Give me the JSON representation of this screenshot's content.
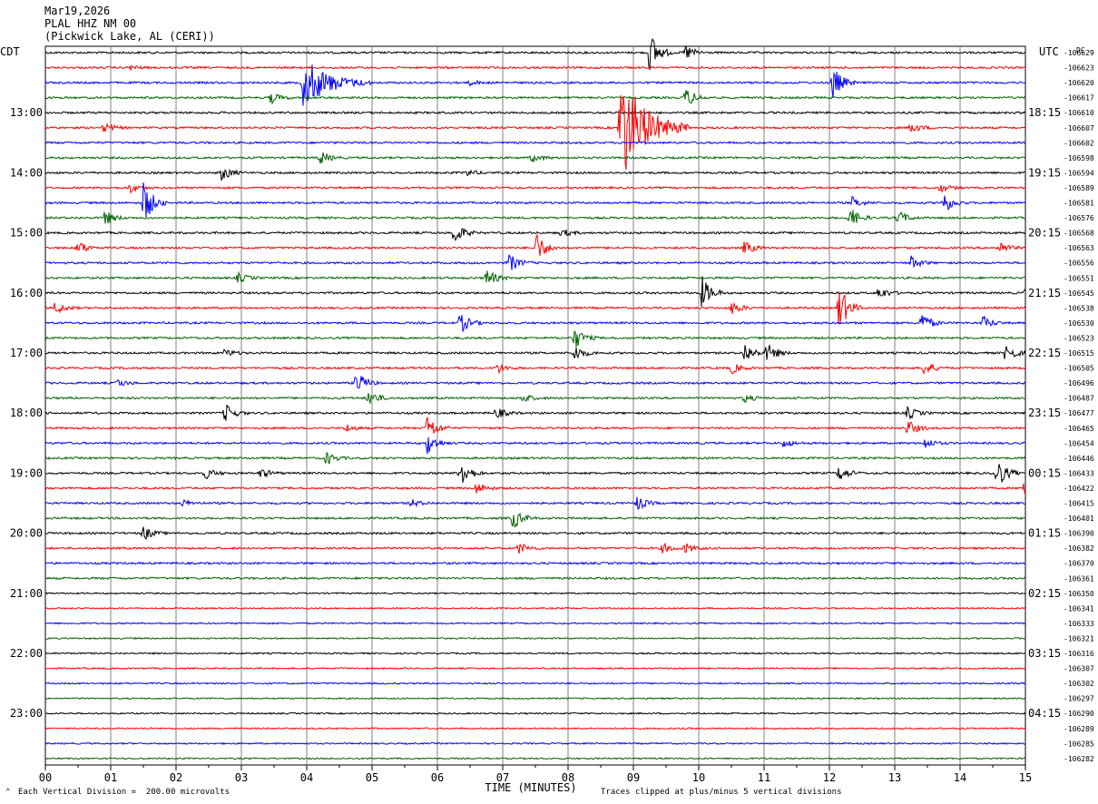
{
  "header": {
    "date": "Mar19,2026",
    "station": "PLAL HHZ NM 00",
    "location": "(Pickwick Lake, AL (CERI))"
  },
  "chart_data": {
    "type": "line",
    "title": "PLAL HHZ NM 00",
    "xlabel": "TIME (MINUTES)",
    "x_ticks": [
      "00",
      "01",
      "02",
      "03",
      "04",
      "05",
      "06",
      "07",
      "08",
      "09",
      "10",
      "11",
      "12",
      "13",
      "14",
      "15"
    ],
    "xlim": [
      0,
      15
    ],
    "left_axis_label": "CDT",
    "right_axis_label": "UTC",
    "dc_label": "DC",
    "left_times": [
      "13:00",
      "14:00",
      "15:00",
      "16:00",
      "17:00",
      "18:00",
      "19:00",
      "20:00",
      "21:00",
      "22:00",
      "23:00"
    ],
    "right_times": [
      "18:15",
      "19:15",
      "20:15",
      "21:15",
      "22:15",
      "23:15",
      "00:15",
      "01:15",
      "02:15",
      "03:15",
      "04:15"
    ],
    "trace_colors": [
      "#000000",
      "#ff0000",
      "#0000ff",
      "#006400"
    ],
    "dc_offsets": [
      "-106629",
      "-106623",
      "-106620",
      "-106617",
      "-106610",
      "-106607",
      "-106602",
      "-106598",
      "-106594",
      "-106589",
      "-106581",
      "-106576",
      "-106568",
      "-106563",
      "-106556",
      "-106551",
      "-106545",
      "-106538",
      "-106530",
      "-106523",
      "-106515",
      "-106505",
      "-106496",
      "-106487",
      "-106477",
      "-106465",
      "-106454",
      "-106446",
      "-106433",
      "-106422",
      "-106415",
      "-106401",
      "-106390",
      "-106382",
      "-106370",
      "-106361",
      "-106350",
      "-106341",
      "-106333",
      "-106321",
      "-106316",
      "-106307",
      "-106302",
      "-106297",
      "-106290",
      "-106289",
      "-106285",
      "-106282"
    ],
    "events": [
      {
        "trace": 0,
        "minute": 9.25,
        "amp": 2.6
      },
      {
        "trace": 0,
        "minute": 9.8,
        "amp": 1.0
      },
      {
        "trace": 1,
        "minute": 1.3,
        "amp": 0.3
      },
      {
        "trace": 2,
        "minute": 3.95,
        "amp": 3.2
      },
      {
        "trace": 2,
        "minute": 12.05,
        "amp": 2.2
      },
      {
        "trace": 2,
        "minute": 6.5,
        "amp": 0.3
      },
      {
        "trace": 3,
        "minute": 9.8,
        "amp": 1.3
      },
      {
        "trace": 3,
        "minute": 3.45,
        "amp": 0.7
      },
      {
        "trace": 5,
        "minute": 8.8,
        "amp": 7.0
      },
      {
        "trace": 5,
        "minute": 0.9,
        "amp": 0.6
      },
      {
        "trace": 5,
        "minute": 13.25,
        "amp": 0.7
      },
      {
        "trace": 7,
        "minute": 4.2,
        "amp": 0.9
      },
      {
        "trace": 7,
        "minute": 7.45,
        "amp": 0.5
      },
      {
        "trace": 8,
        "minute": 2.7,
        "amp": 1.0
      },
      {
        "trace": 8,
        "minute": 6.45,
        "amp": 0.4
      },
      {
        "trace": 9,
        "minute": 1.3,
        "amp": 0.6
      },
      {
        "trace": 9,
        "minute": 13.7,
        "amp": 0.5
      },
      {
        "trace": 10,
        "minute": 1.5,
        "amp": 3.0
      },
      {
        "trace": 10,
        "minute": 12.35,
        "amp": 0.7
      },
      {
        "trace": 10,
        "minute": 13.75,
        "amp": 1.3
      },
      {
        "trace": 11,
        "minute": 0.9,
        "amp": 1.0
      },
      {
        "trace": 11,
        "minute": 12.3,
        "amp": 1.4
      },
      {
        "trace": 11,
        "minute": 13.05,
        "amp": 0.9
      },
      {
        "trace": 12,
        "minute": 6.25,
        "amp": 1.5
      },
      {
        "trace": 12,
        "minute": 7.9,
        "amp": 0.5
      },
      {
        "trace": 13,
        "minute": 7.5,
        "amp": 2.2
      },
      {
        "trace": 13,
        "minute": 10.7,
        "amp": 0.9
      },
      {
        "trace": 13,
        "minute": 0.5,
        "amp": 0.9
      },
      {
        "trace": 13,
        "minute": 14.6,
        "amp": 0.8
      },
      {
        "trace": 14,
        "minute": 7.1,
        "amp": 1.2
      },
      {
        "trace": 14,
        "minute": 13.25,
        "amp": 0.8
      },
      {
        "trace": 15,
        "minute": 6.75,
        "amp": 1.2
      },
      {
        "trace": 15,
        "minute": 2.95,
        "amp": 0.6
      },
      {
        "trace": 16,
        "minute": 10.05,
        "amp": 2.0
      },
      {
        "trace": 16,
        "minute": 12.75,
        "amp": 0.8
      },
      {
        "trace": 16,
        "minute": 15.0,
        "amp": 0.6
      },
      {
        "trace": 17,
        "minute": 12.15,
        "amp": 3.0
      },
      {
        "trace": 17,
        "minute": 10.5,
        "amp": 0.9
      },
      {
        "trace": 17,
        "minute": 0.15,
        "amp": 0.8
      },
      {
        "trace": 18,
        "minute": 6.35,
        "amp": 1.3
      },
      {
        "trace": 18,
        "minute": 13.4,
        "amp": 1.4
      },
      {
        "trace": 18,
        "minute": 14.35,
        "amp": 0.8
      },
      {
        "trace": 19,
        "minute": 8.1,
        "amp": 1.4
      },
      {
        "trace": 20,
        "minute": 8.1,
        "amp": 1.0
      },
      {
        "trace": 20,
        "minute": 10.7,
        "amp": 1.3
      },
      {
        "trace": 20,
        "minute": 11.05,
        "amp": 1.2
      },
      {
        "trace": 20,
        "minute": 14.7,
        "amp": 1.2
      },
      {
        "trace": 20,
        "minute": 2.75,
        "amp": 0.5
      },
      {
        "trace": 21,
        "minute": 6.9,
        "amp": 0.7
      },
      {
        "trace": 21,
        "minute": 10.5,
        "amp": 0.7
      },
      {
        "trace": 21,
        "minute": 13.45,
        "amp": 0.9
      },
      {
        "trace": 22,
        "minute": 4.75,
        "amp": 1.6
      },
      {
        "trace": 22,
        "minute": 1.1,
        "amp": 0.5
      },
      {
        "trace": 23,
        "minute": 4.95,
        "amp": 1.0
      },
      {
        "trace": 23,
        "minute": 7.3,
        "amp": 0.6
      },
      {
        "trace": 23,
        "minute": 10.7,
        "amp": 0.5
      },
      {
        "trace": 24,
        "minute": 2.75,
        "amp": 1.2
      },
      {
        "trace": 24,
        "minute": 6.9,
        "amp": 0.7
      },
      {
        "trace": 24,
        "minute": 13.2,
        "amp": 0.8
      },
      {
        "trace": 25,
        "minute": 5.85,
        "amp": 1.8
      },
      {
        "trace": 25,
        "minute": 4.6,
        "amp": 0.5
      },
      {
        "trace": 25,
        "minute": 13.2,
        "amp": 1.0
      },
      {
        "trace": 26,
        "minute": 5.85,
        "amp": 1.4
      },
      {
        "trace": 26,
        "minute": 13.45,
        "amp": 0.7
      },
      {
        "trace": 26,
        "minute": 11.3,
        "amp": 0.5
      },
      {
        "trace": 27,
        "minute": 4.3,
        "amp": 0.8
      },
      {
        "trace": 28,
        "minute": 6.35,
        "amp": 2.0
      },
      {
        "trace": 28,
        "minute": 12.15,
        "amp": 1.0
      },
      {
        "trace": 28,
        "minute": 14.55,
        "amp": 2.2
      },
      {
        "trace": 28,
        "minute": 2.45,
        "amp": 0.7
      },
      {
        "trace": 28,
        "minute": 3.3,
        "amp": 0.6
      },
      {
        "trace": 29,
        "minute": 6.6,
        "amp": 0.8
      },
      {
        "trace": 29,
        "minute": 14.98,
        "amp": 1.4
      },
      {
        "trace": 30,
        "minute": 5.6,
        "amp": 0.5
      },
      {
        "trace": 30,
        "minute": 9.05,
        "amp": 0.9
      },
      {
        "trace": 30,
        "minute": 2.1,
        "amp": 0.4
      },
      {
        "trace": 31,
        "minute": 7.15,
        "amp": 1.4
      },
      {
        "trace": 32,
        "minute": 1.5,
        "amp": 0.9
      },
      {
        "trace": 33,
        "minute": 7.25,
        "amp": 0.7
      },
      {
        "trace": 33,
        "minute": 9.45,
        "amp": 0.6
      },
      {
        "trace": 33,
        "minute": 9.8,
        "amp": 0.6
      }
    ]
  },
  "footer": {
    "scale_text": "Each Vertical Division =  200.00 microvolts",
    "clip_text": "Traces clipped at plus/minus 5 vertical divisions"
  }
}
